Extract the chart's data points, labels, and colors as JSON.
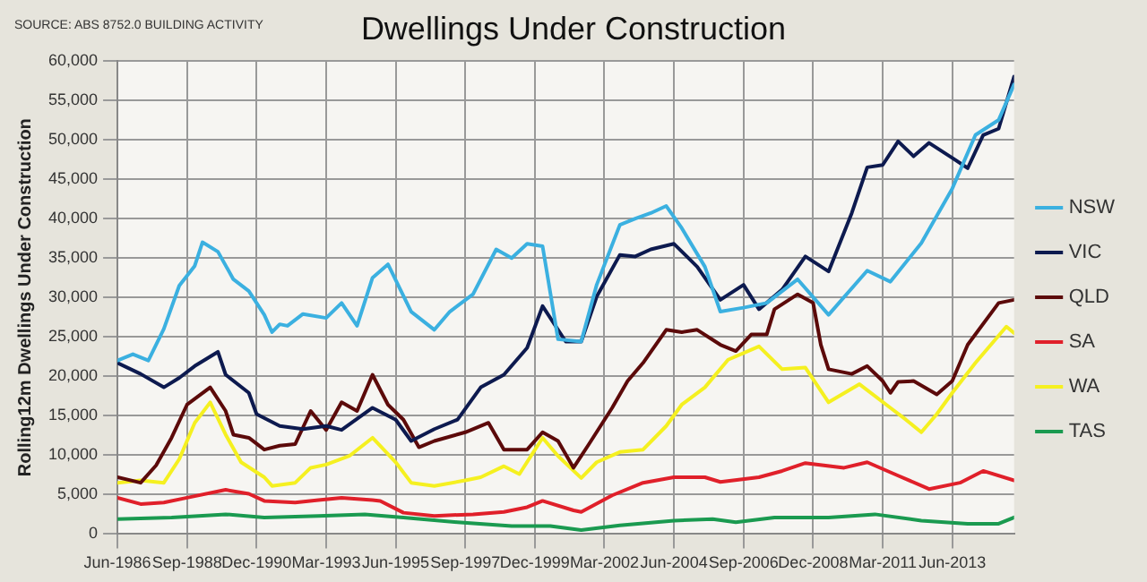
{
  "chart_data": {
    "type": "line",
    "title": "Dwellings Under Construction",
    "ylabel": "Rolling12m Dwellings Under Construction",
    "annotations": [
      "SOURCE: ABS 8752.0 BUILDING ACTIVITY"
    ],
    "xlim": [
      "1986-06",
      "2015-06"
    ],
    "ylim": [
      0,
      60000
    ],
    "xticks": [
      {
        "value": "1986-06",
        "label": "Jun-1986"
      },
      {
        "value": "1988-09",
        "label": "Sep-1988"
      },
      {
        "value": "1990-12",
        "label": "Dec-1990"
      },
      {
        "value": "1993-03",
        "label": "Mar-1993"
      },
      {
        "value": "1995-06",
        "label": "Jun-1995"
      },
      {
        "value": "1997-09",
        "label": "Sep-1997"
      },
      {
        "value": "1999-12",
        "label": "Dec-1999"
      },
      {
        "value": "2002-03",
        "label": "Mar-2002"
      },
      {
        "value": "2004-06",
        "label": "Jun-2004"
      },
      {
        "value": "2006-09",
        "label": "Sep-2006"
      },
      {
        "value": "2008-12",
        "label": "Dec-2008"
      },
      {
        "value": "2011-03",
        "label": "Mar-2011"
      },
      {
        "value": "2013-06",
        "label": "Jun-2013"
      }
    ],
    "yticks": [
      0,
      {
        "value": 5000,
        "label": "5,000"
      },
      {
        "value": 10000,
        "label": "10,000"
      },
      {
        "value": 15000,
        "label": "15,000"
      },
      {
        "value": 20000,
        "label": "20,000"
      },
      {
        "value": 25000,
        "label": "25,000"
      },
      {
        "value": 30000,
        "label": "30,000"
      },
      {
        "value": 35000,
        "label": "35,000"
      },
      {
        "value": 40000,
        "label": "40,000"
      },
      {
        "value": 45000,
        "label": "45,000"
      },
      {
        "value": 50000,
        "label": "50,000"
      },
      {
        "value": 55000,
        "label": "55,000"
      },
      {
        "value": 60000,
        "label": "60,000"
      }
    ],
    "grid": true,
    "legend": "right",
    "marker": "none",
    "line_style": "solid",
    "series": [
      {
        "name": "NSW",
        "color": "#3bb0e0",
        "x": [
          "1986-06",
          "1986-12",
          "1987-06",
          "1987-12",
          "1988-06",
          "1988-12",
          "1989-03",
          "1989-09",
          "1990-03",
          "1990-09",
          "1991-03",
          "1991-06",
          "1991-09",
          "1991-12",
          "1992-06",
          "1993-03",
          "1993-09",
          "1994-03",
          "1994-09",
          "1995-03",
          "1995-12",
          "1996-09",
          "1997-03",
          "1997-12",
          "1998-09",
          "1999-03",
          "1999-09",
          "2000-03",
          "2000-09",
          "2001-06",
          "2001-12",
          "2002-09",
          "2003-03",
          "2003-09",
          "2004-03",
          "2004-09",
          "2005-06",
          "2005-12",
          "2006-09",
          "2007-06",
          "2008-06",
          "2009-06",
          "2010-09",
          "2011-06",
          "2012-06",
          "2013-06",
          "2014-03",
          "2014-12",
          "2015-06"
        ],
        "values": [
          22000,
          22800,
          22000,
          26000,
          31500,
          34000,
          37000,
          35800,
          32300,
          30800,
          27800,
          25600,
          26600,
          26400,
          27900,
          27400,
          29300,
          26400,
          32500,
          34200,
          28200,
          25900,
          28200,
          30400,
          36100,
          35000,
          36800,
          36500,
          24700,
          24400,
          31600,
          39200,
          40000,
          40700,
          41600,
          38800,
          33900,
          28200,
          28700,
          29300,
          32300,
          27800,
          33400,
          32000,
          36900,
          43800,
          50600,
          52500,
          57000
        ]
      },
      {
        "name": "VIC",
        "color": "#0d1a4f",
        "x": [
          "1986-06",
          "1987-03",
          "1987-12",
          "1988-06",
          "1988-12",
          "1989-09",
          "1989-12",
          "1990-09",
          "1990-12",
          "1991-09",
          "1992-06",
          "1993-03",
          "1993-09",
          "1994-09",
          "1995-06",
          "1995-12",
          "1996-09",
          "1997-06",
          "1998-03",
          "1998-12",
          "1999-09",
          "2000-03",
          "2000-12",
          "2001-06",
          "2001-12",
          "2002-09",
          "2003-03",
          "2003-09",
          "2004-06",
          "2005-03",
          "2005-12",
          "2006-09",
          "2007-03",
          "2007-12",
          "2008-09",
          "2009-06",
          "2010-03",
          "2010-09",
          "2011-03",
          "2011-09",
          "2012-03",
          "2012-09",
          "2013-06",
          "2013-12",
          "2014-06",
          "2014-12",
          "2015-06"
        ],
        "values": [
          21700,
          20300,
          18600,
          19800,
          21300,
          23100,
          20200,
          17900,
          15200,
          13700,
          13300,
          13700,
          13200,
          16000,
          14500,
          11800,
          13300,
          14500,
          18600,
          20200,
          23600,
          28900,
          24400,
          24400,
          30100,
          35400,
          35200,
          36100,
          36800,
          33900,
          29700,
          31600,
          28500,
          31000,
          35200,
          33300,
          40700,
          46500,
          46800,
          49800,
          47900,
          49600,
          47700,
          46400,
          50600,
          51400,
          58000
        ]
      },
      {
        "name": "QLD",
        "color": "#5c0a0a",
        "x": [
          "1986-06",
          "1987-03",
          "1987-09",
          "1988-03",
          "1988-09",
          "1989-06",
          "1989-12",
          "1990-03",
          "1990-09",
          "1991-03",
          "1991-09",
          "1992-03",
          "1992-09",
          "1993-03",
          "1993-09",
          "1994-03",
          "1994-09",
          "1995-03",
          "1995-09",
          "1996-03",
          "1996-09",
          "1997-09",
          "1998-06",
          "1998-12",
          "1999-09",
          "2000-03",
          "2000-09",
          "2001-03",
          "2001-09",
          "2002-06",
          "2002-12",
          "2003-06",
          "2004-03",
          "2004-09",
          "2005-03",
          "2005-12",
          "2006-06",
          "2006-12",
          "2007-06",
          "2007-09",
          "2008-06",
          "2008-12",
          "2009-03",
          "2009-06",
          "2010-03",
          "2010-09",
          "2011-03",
          "2011-06",
          "2011-09",
          "2012-03",
          "2012-12",
          "2013-06",
          "2013-12",
          "2014-12",
          "2015-06"
        ],
        "values": [
          7200,
          6500,
          8700,
          12200,
          16400,
          18600,
          15600,
          12600,
          12200,
          10700,
          11200,
          11400,
          15600,
          13200,
          16700,
          15600,
          20200,
          16400,
          14500,
          11000,
          11800,
          12900,
          14100,
          10700,
          10700,
          12900,
          11800,
          8400,
          11400,
          16000,
          19400,
          21700,
          25900,
          25600,
          25900,
          24000,
          23200,
          25300,
          25300,
          28500,
          30400,
          29300,
          24000,
          20900,
          20300,
          21300,
          19400,
          17900,
          19300,
          19400,
          17700,
          19400,
          24000,
          29300,
          29700
        ]
      },
      {
        "name": "SA",
        "color": "#e0202a",
        "x": [
          "1986-06",
          "1987-03",
          "1987-12",
          "1988-09",
          "1989-12",
          "1990-09",
          "1991-03",
          "1992-03",
          "1992-12",
          "1993-09",
          "1994-09",
          "1994-12",
          "1995-09",
          "1996-09",
          "1997-12",
          "1998-12",
          "1999-09",
          "2000-03",
          "2001-03",
          "2001-06",
          "2002-06",
          "2003-06",
          "2004-06",
          "2005-06",
          "2005-12",
          "2007-03",
          "2007-12",
          "2008-09",
          "2009-12",
          "2010-09",
          "2011-09",
          "2012-09",
          "2013-09",
          "2014-06",
          "2015-06"
        ],
        "values": [
          4600,
          3800,
          4000,
          4600,
          5600,
          5100,
          4200,
          4000,
          4300,
          4600,
          4300,
          4200,
          2700,
          2300,
          2500,
          2800,
          3400,
          4200,
          3000,
          2800,
          4900,
          6500,
          7200,
          7200,
          6600,
          7200,
          8000,
          9000,
          8400,
          9100,
          7400,
          5700,
          6500,
          8000,
          6800
        ]
      },
      {
        "name": "WA",
        "color": "#f5f020",
        "x": [
          "1986-06",
          "1987-03",
          "1987-12",
          "1988-06",
          "1988-12",
          "1989-06",
          "1989-12",
          "1990-06",
          "1991-03",
          "1991-06",
          "1992-03",
          "1992-09",
          "1993-03",
          "1993-12",
          "1994-09",
          "1995-06",
          "1995-12",
          "1996-09",
          "1997-09",
          "1998-03",
          "1998-12",
          "1999-06",
          "2000-03",
          "2000-09",
          "2001-06",
          "2001-12",
          "2002-09",
          "2003-06",
          "2004-03",
          "2004-09",
          "2005-06",
          "2006-03",
          "2007-03",
          "2007-12",
          "2008-09",
          "2009-06",
          "2010-06",
          "2011-06",
          "2011-12",
          "2012-06",
          "2012-12",
          "2013-06",
          "2014-03",
          "2015-03",
          "2015-06"
        ],
        "values": [
          6500,
          6800,
          6500,
          9500,
          14100,
          16700,
          12600,
          9100,
          7200,
          6100,
          6500,
          8400,
          8800,
          9900,
          12200,
          9100,
          6500,
          6100,
          6800,
          7200,
          8600,
          7600,
          12200,
          9900,
          7100,
          9100,
          10400,
          10700,
          13700,
          16400,
          18600,
          22100,
          23800,
          20900,
          21100,
          16700,
          19000,
          16000,
          14500,
          12900,
          15200,
          17900,
          21700,
          26300,
          25500
        ]
      },
      {
        "name": "TAS",
        "color": "#1a9a50",
        "x": [
          "1986-06",
          "1988-03",
          "1989-12",
          "1991-03",
          "1992-12",
          "1994-06",
          "1995-09",
          "1997-06",
          "1999-03",
          "2000-06",
          "2001-06",
          "2002-09",
          "2004-06",
          "2005-09",
          "2006-06",
          "2007-09",
          "2009-06",
          "2010-12",
          "2012-06",
          "2013-12",
          "2014-12",
          "2015-06"
        ],
        "values": [
          1900,
          2100,
          2500,
          2100,
          2300,
          2500,
          2100,
          1500,
          1000,
          1000,
          500,
          1100,
          1700,
          1900,
          1500,
          2100,
          2100,
          2500,
          1700,
          1300,
          1300,
          2100
        ]
      }
    ]
  }
}
